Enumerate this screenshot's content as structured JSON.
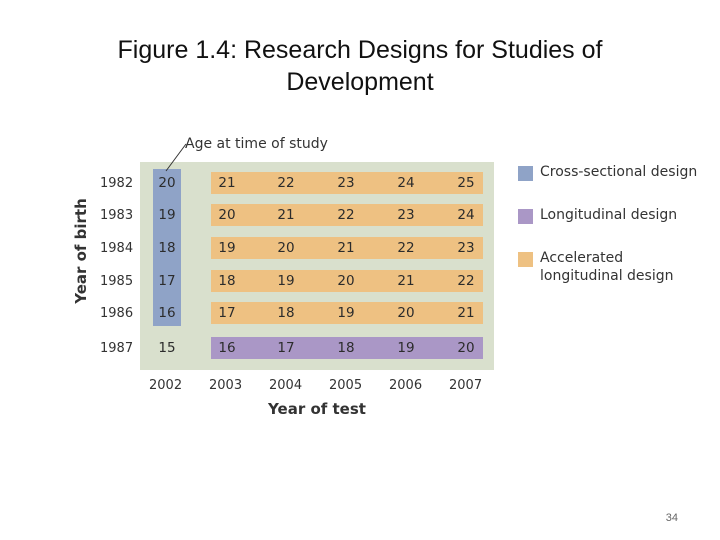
{
  "title": "Figure 1.4: Research Designs for Studies of Development",
  "annotation": "Age at time of study",
  "axes": {
    "y_label": "Year of birth",
    "x_label": "Year of test",
    "birth_years": [
      "1982",
      "1983",
      "1984",
      "1985",
      "1986",
      "1987"
    ],
    "test_years": [
      "2002",
      "2003",
      "2004",
      "2005",
      "2006",
      "2007"
    ]
  },
  "grid": {
    "rows": [
      {
        "birth_year": "1982",
        "ages": [
          "20",
          "21",
          "22",
          "23",
          "24",
          "25"
        ]
      },
      {
        "birth_year": "1983",
        "ages": [
          "19",
          "20",
          "21",
          "22",
          "23",
          "24"
        ]
      },
      {
        "birth_year": "1984",
        "ages": [
          "18",
          "19",
          "20",
          "21",
          "22",
          "23"
        ]
      },
      {
        "birth_year": "1985",
        "ages": [
          "17",
          "18",
          "19",
          "20",
          "21",
          "22"
        ]
      },
      {
        "birth_year": "1986",
        "ages": [
          "16",
          "17",
          "18",
          "19",
          "20",
          "21"
        ]
      },
      {
        "birth_year": "1987",
        "ages": [
          "15",
          "16",
          "17",
          "18",
          "19",
          "20"
        ]
      }
    ]
  },
  "legend": [
    {
      "label": "Cross-sectional design",
      "color": "#8fa3c7"
    },
    {
      "label": "Longitudinal design",
      "color": "#aa97c6"
    },
    {
      "label": "Accelerated longitudinal design",
      "color": "#eec182"
    }
  ],
  "colors": {
    "panel": "#d9e0cd"
  },
  "page_number": "34"
}
